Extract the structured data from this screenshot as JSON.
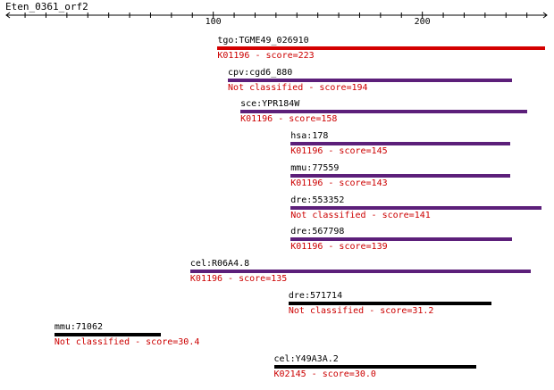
{
  "query": {
    "name": "Eten_0361_orf2"
  },
  "axis": {
    "ticks": [
      100,
      200
    ]
  },
  "colors": {
    "axis": "#000000",
    "desc_text": "#cc0000",
    "bar_red": "#d40000",
    "bar_purple": "#5c1f7a",
    "bar_black": "#000000"
  },
  "hits": [
    {
      "name": "tgo:TGME49_026910",
      "desc": "K01196 - score=223",
      "start": 102,
      "end": 260,
      "color": "bar_red"
    },
    {
      "name": "cpv:cgd6_880",
      "desc": "Not classified - score=194",
      "start": 107,
      "end": 243,
      "color": "bar_purple"
    },
    {
      "name": "sce:YPR184W",
      "desc": "K01196 - score=158",
      "start": 113,
      "end": 250,
      "color": "bar_purple"
    },
    {
      "name": "hsa:178",
      "desc": "K01196 - score=145",
      "start": 137,
      "end": 242,
      "color": "bar_purple"
    },
    {
      "name": "mmu:77559",
      "desc": "K01196 - score=143",
      "start": 137,
      "end": 242,
      "color": "bar_purple"
    },
    {
      "name": "dre:553352",
      "desc": "Not classified - score=141",
      "start": 137,
      "end": 257,
      "color": "bar_purple"
    },
    {
      "name": "dre:567798",
      "desc": "K01196 - score=139",
      "start": 137,
      "end": 243,
      "color": "bar_purple"
    },
    {
      "name": "cel:R06A4.8",
      "desc": "K01196 - score=135",
      "start": 89,
      "end": 252,
      "color": "bar_purple"
    },
    {
      "name": "dre:571714",
      "desc": "Not classified - score=31.2",
      "start": 136,
      "end": 233,
      "color": "bar_black"
    },
    {
      "name": "mmu:71062",
      "desc": "Not classified - score=30.4",
      "start": 24,
      "end": 75,
      "color": "bar_black"
    },
    {
      "name": "cel:Y49A3A.2",
      "desc": "K02145 - score=30.0",
      "start": 129,
      "end": 226,
      "color": "bar_black"
    }
  ]
}
